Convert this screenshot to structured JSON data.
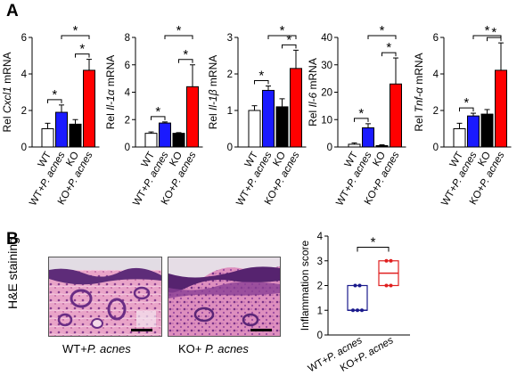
{
  "panels": {
    "a": "A",
    "b": "B"
  },
  "he_label": "H&E staining",
  "images": [
    {
      "caption_pre": "WT+",
      "caption_italic": "P. acnes"
    },
    {
      "caption_pre": "KO+ ",
      "caption_italic": "P. acnes"
    }
  ],
  "colors": {
    "wt": "#ffffff",
    "wt_pacnes": "#1a1aff",
    "ko": "#000000",
    "ko_pacnes": "#ff0000",
    "box_wt": "#1a1a8c",
    "box_ko": "#e02020"
  },
  "chart_data": [
    {
      "type": "bar",
      "ylabel_pre": "Rel ",
      "ylabel_gene": "Cxcl1",
      "ylabel_post": " mRNA",
      "categories": [
        "WT",
        "WT+P. acnes",
        "KO",
        "KO+P. acnes"
      ],
      "values": [
        1.0,
        1.9,
        1.25,
        4.2
      ],
      "errors": [
        0.3,
        0.4,
        0.25,
        0.6
      ],
      "ylim": [
        0,
        6
      ],
      "yticks": [
        0,
        2,
        4,
        6
      ],
      "significance": [
        {
          "from": 0,
          "to": 1,
          "label": "*"
        },
        {
          "from": 2,
          "to": 3,
          "label": "*"
        },
        {
          "from": 1,
          "to": 3,
          "label": "*"
        }
      ]
    },
    {
      "type": "bar",
      "ylabel_pre": "Rel ",
      "ylabel_gene": "Il-1α",
      "ylabel_post": " mRNA",
      "categories": [
        "WT",
        "WT+P. acnes",
        "KO",
        "KO+P. acnes"
      ],
      "values": [
        1.0,
        1.75,
        1.0,
        4.4
      ],
      "errors": [
        0.1,
        0.08,
        0.05,
        1.6
      ],
      "ylim": [
        0,
        8
      ],
      "yticks": [
        0,
        2,
        4,
        6,
        8
      ],
      "significance": [
        {
          "from": 0,
          "to": 1,
          "label": "*"
        },
        {
          "from": 2,
          "to": 3,
          "label": "*"
        },
        {
          "from": 1,
          "to": 3,
          "label": "*"
        }
      ]
    },
    {
      "type": "bar",
      "ylabel_pre": "Rel ",
      "ylabel_gene": "Il-1β",
      "ylabel_post": " mRNA",
      "categories": [
        "WT",
        "WT+P. acnes",
        "KO",
        "KO+P. acnes"
      ],
      "values": [
        1.0,
        1.55,
        1.1,
        2.15
      ],
      "errors": [
        0.13,
        0.12,
        0.22,
        0.5
      ],
      "ylim": [
        0,
        3
      ],
      "yticks": [
        0,
        1,
        2,
        3
      ],
      "significance": [
        {
          "from": 0,
          "to": 1,
          "label": "*"
        },
        {
          "from": 2,
          "to": 3,
          "label": "*"
        },
        {
          "from": 1,
          "to": 3,
          "label": "*"
        }
      ]
    },
    {
      "type": "bar",
      "ylabel_pre": "Rel ",
      "ylabel_gene": "Il-6",
      "ylabel_post": " mRNA",
      "categories": [
        "WT",
        "WT+P. acnes",
        "KO",
        "KO+P. acnes"
      ],
      "values": [
        1.0,
        7.0,
        0.5,
        23.0
      ],
      "errors": [
        0.5,
        1.5,
        0.3,
        9.5
      ],
      "ylim": [
        0,
        40
      ],
      "yticks": [
        0,
        10,
        20,
        30,
        40
      ],
      "significance": [
        {
          "from": 0,
          "to": 1,
          "label": "*"
        },
        {
          "from": 2,
          "to": 3,
          "label": "*"
        },
        {
          "from": 1,
          "to": 3,
          "label": "*"
        }
      ]
    },
    {
      "type": "bar",
      "ylabel_pre": "Rel ",
      "ylabel_gene": "Tnf-α",
      "ylabel_post": " mRNA",
      "categories": [
        "WT",
        "WT+P. acnes",
        "KO",
        "KO+P. acnes"
      ],
      "values": [
        1.0,
        1.7,
        1.8,
        4.2
      ],
      "errors": [
        0.3,
        0.15,
        0.25,
        1.5
      ],
      "ylim": [
        0,
        6
      ],
      "yticks": [
        0,
        2,
        4,
        6
      ],
      "significance": [
        {
          "from": 0,
          "to": 1,
          "label": "*"
        },
        {
          "from": 2,
          "to": 3,
          "label": "*"
        },
        {
          "from": 1,
          "to": 3,
          "label": "*"
        }
      ]
    },
    {
      "type": "box",
      "ylabel": "Inflammation score",
      "categories": [
        "WT+P. acnes",
        "KO+P. acnes"
      ],
      "boxes": [
        {
          "min": 1.0,
          "q1": 1.0,
          "median": 1.0,
          "q3": 2.0,
          "max": 2.0,
          "points": [
            1,
            1,
            1,
            2,
            2
          ]
        },
        {
          "min": 2.0,
          "q1": 2.0,
          "median": 2.5,
          "q3": 3.0,
          "max": 3.0,
          "points": [
            2,
            2,
            3,
            3
          ]
        }
      ],
      "ylim": [
        0,
        4
      ],
      "yticks": [
        0,
        1,
        2,
        3,
        4
      ],
      "significance": [
        {
          "from": 0,
          "to": 1,
          "label": "*"
        }
      ]
    }
  ]
}
